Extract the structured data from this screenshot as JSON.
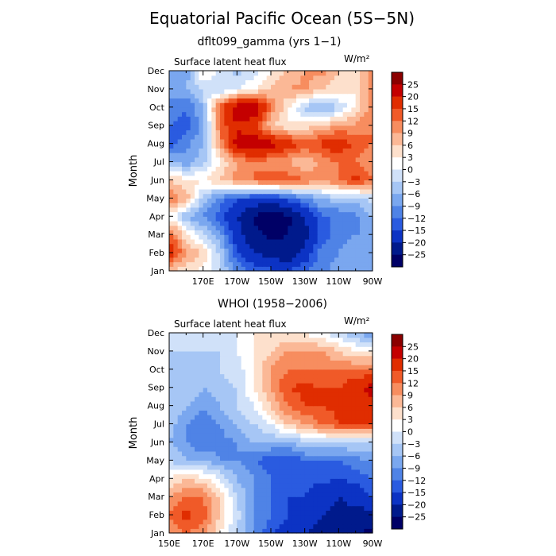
{
  "figure": {
    "title": "Equatorial Pacific Ocean (5S−5N)"
  },
  "chart_data": [
    {
      "type": "heatmap",
      "title": "dflt099_gamma (yrs 1−1)",
      "subtitle_left": "Surface latent heat flux",
      "units": "W/m²",
      "ylabel": "Month",
      "y_ticks": [
        "Jan",
        "Feb",
        "Mar",
        "Apr",
        "May",
        "Jun",
        "Jul",
        "Aug",
        "Sep",
        "Oct",
        "Nov",
        "Dec"
      ],
      "x_ticks": [
        "",
        "170E",
        "170W",
        "150W",
        "130W",
        "110W",
        "90W"
      ],
      "x_range_deg_east": [
        150,
        270
      ],
      "levels": [
        "25",
        "20",
        "15",
        "12",
        "9",
        "6",
        "3",
        "0",
        "−3",
        "−6",
        "−9",
        "−12",
        "−15",
        "−20",
        "−25"
      ],
      "grid_lon": [
        150,
        160,
        170,
        180,
        190,
        200,
        210,
        220,
        230,
        240,
        250,
        260,
        270
      ],
      "grid_month": [
        "Jan",
        "Feb",
        "Mar",
        "Apr",
        "May",
        "Jun",
        "Jul",
        "Aug",
        "Sep",
        "Oct",
        "Nov",
        "Dec"
      ],
      "values": [
        [
          6,
          4,
          2,
          -2,
          -10,
          -12,
          -14,
          -15,
          -12,
          -10,
          -8,
          -6,
          -6
        ],
        [
          18,
          10,
          6,
          -4,
          -14,
          -20,
          -22,
          -24,
          -18,
          -10,
          -9,
          -8,
          -7
        ],
        [
          14,
          4,
          -3,
          -8,
          -18,
          -24,
          -26,
          -25,
          -22,
          -14,
          -10,
          -9,
          -9
        ],
        [
          2,
          -6,
          -9,
          -14,
          -20,
          -26,
          -28,
          -26,
          -20,
          -12,
          -12,
          -10,
          -6
        ],
        [
          12,
          8,
          -4,
          -10,
          -14,
          -16,
          -18,
          -14,
          -10,
          -6,
          -4,
          -5,
          -2
        ],
        [
          6,
          4,
          3,
          6,
          10,
          12,
          15,
          14,
          12,
          10,
          12,
          16,
          12
        ],
        [
          -6,
          -8,
          -4,
          3,
          9,
          12,
          10,
          9,
          6,
          10,
          12,
          12,
          9
        ],
        [
          -14,
          -10,
          -6,
          10,
          22,
          24,
          22,
          18,
          14,
          16,
          18,
          14,
          12
        ],
        [
          -12,
          -14,
          -8,
          12,
          20,
          15,
          6,
          3,
          4,
          6,
          9,
          10,
          12
        ],
        [
          -10,
          -12,
          -6,
          14,
          24,
          26,
          12,
          3,
          -4,
          -8,
          -3,
          3,
          12
        ],
        [
          -8,
          -6,
          -2,
          -3,
          0,
          3,
          6,
          9,
          10,
          6,
          4,
          3,
          12
        ],
        [
          -6,
          -8,
          3,
          0,
          -4,
          -2,
          3,
          6,
          9,
          10,
          6,
          3,
          12
        ]
      ]
    },
    {
      "type": "heatmap",
      "title": "WHOI (1958−2006)",
      "subtitle_left": "Surface latent heat flux",
      "units": "W/m²",
      "ylabel": "Month",
      "y_ticks": [
        "Jan",
        "Feb",
        "Mar",
        "Apr",
        "May",
        "Jun",
        "Jul",
        "Aug",
        "Sep",
        "Oct",
        "Nov",
        "Dec"
      ],
      "x_ticks": [
        "150E",
        "170E",
        "170W",
        "150W",
        "130W",
        "110W",
        "90W"
      ],
      "x_range_deg_east": [
        150,
        270
      ],
      "levels": [
        "25",
        "20",
        "15",
        "12",
        "9",
        "6",
        "3",
        "0",
        "−3",
        "−6",
        "−9",
        "−12",
        "−15",
        "−20",
        "−25"
      ],
      "grid_lon": [
        150,
        160,
        170,
        180,
        190,
        200,
        210,
        220,
        230,
        240,
        250,
        260,
        270
      ],
      "grid_month": [
        "Jan",
        "Feb",
        "Mar",
        "Apr",
        "May",
        "Jun",
        "Jul",
        "Aug",
        "Sep",
        "Oct",
        "Nov",
        "Dec"
      ],
      "values": [
        [
          9,
          12,
          10,
          3,
          -3,
          -10,
          -14,
          -18,
          -20,
          -22,
          -24,
          -25,
          -26
        ],
        [
          12,
          16,
          14,
          6,
          -2,
          -9,
          -12,
          -15,
          -18,
          -20,
          -22,
          -22,
          -22
        ],
        [
          9,
          12,
          12,
          6,
          -3,
          -9,
          -12,
          -15,
          -15,
          -18,
          -20,
          -18,
          -15
        ],
        [
          3,
          6,
          4,
          0,
          -6,
          -9,
          -12,
          -15,
          -14,
          -14,
          -15,
          -14,
          -12
        ],
        [
          -3,
          -6,
          -6,
          -9,
          -9,
          -12,
          -14,
          -15,
          -12,
          -12,
          -12,
          -10,
          -9
        ],
        [
          -6,
          -9,
          -12,
          -10,
          -9,
          -6,
          -6,
          -6,
          -4,
          -3,
          -3,
          -3,
          -3
        ],
        [
          -4,
          -9,
          -12,
          -9,
          -6,
          -3,
          0,
          6,
          9,
          12,
          15,
          15,
          15
        ],
        [
          -3,
          -6,
          -9,
          -6,
          -3,
          0,
          6,
          12,
          15,
          15,
          16,
          18,
          18
        ],
        [
          -3,
          -3,
          -6,
          -4,
          -3,
          3,
          9,
          15,
          16,
          15,
          15,
          18,
          22
        ],
        [
          -3,
          -6,
          -4,
          -3,
          -2,
          3,
          9,
          12,
          12,
          12,
          12,
          12,
          12
        ],
        [
          -3,
          -3,
          -3,
          -3,
          0,
          3,
          6,
          9,
          9,
          9,
          6,
          3,
          3
        ],
        [
          -3,
          -3,
          -3,
          -2,
          0,
          3,
          3,
          3,
          3,
          0,
          -3,
          -6,
          -9
        ]
      ]
    }
  ],
  "colorbar_colors": [
    "#8b0000",
    "#c40000",
    "#e02d00",
    "#f05a28",
    "#f78d5f",
    "#fbb896",
    "#fde0cc",
    "#ffffff",
    "#d0e1f9",
    "#a6c6f5",
    "#7aa7ef",
    "#4f83e6",
    "#2a5be0",
    "#0c33c4",
    "#001a8c",
    "#000066"
  ]
}
